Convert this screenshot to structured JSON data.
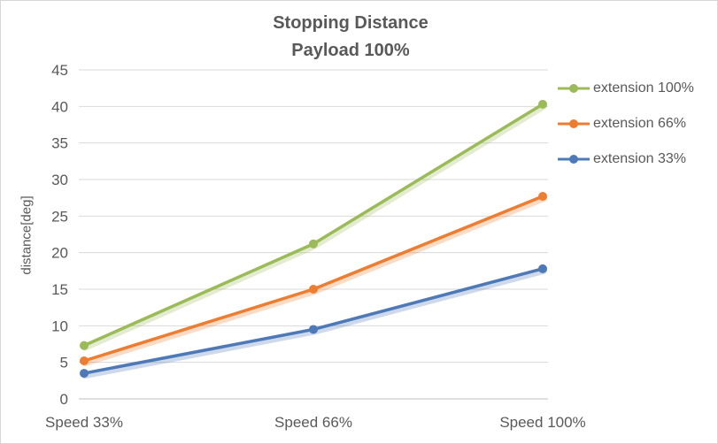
{
  "chart_data": {
    "type": "line",
    "title": "Stopping Distance",
    "subtitle": "Payload 100%",
    "ylabel": "distance[deg]",
    "xlabel": "",
    "categories": [
      "Speed 33%",
      "Speed 66%",
      "Speed 100%"
    ],
    "series": [
      {
        "name": "extension 100%",
        "color": "#9BBB59",
        "values": [
          7.3,
          21.2,
          40.3
        ]
      },
      {
        "name": "extension 66%",
        "color": "#ED7D31",
        "values": [
          5.2,
          15.0,
          27.7
        ]
      },
      {
        "name": "extension 33%",
        "color": "#4E79B7",
        "values": [
          3.5,
          9.5,
          17.8
        ]
      }
    ],
    "ylim": [
      0,
      45
    ],
    "ytick_step": 5,
    "grid": true,
    "legend_position": "right"
  },
  "colors": {
    "title_text": "#595959",
    "axis_text": "#595959",
    "gridline": "#D9D9D9",
    "axis_line": "#BFBFBF",
    "border": "#D6D6D6",
    "background": "#FFFFFF"
  }
}
